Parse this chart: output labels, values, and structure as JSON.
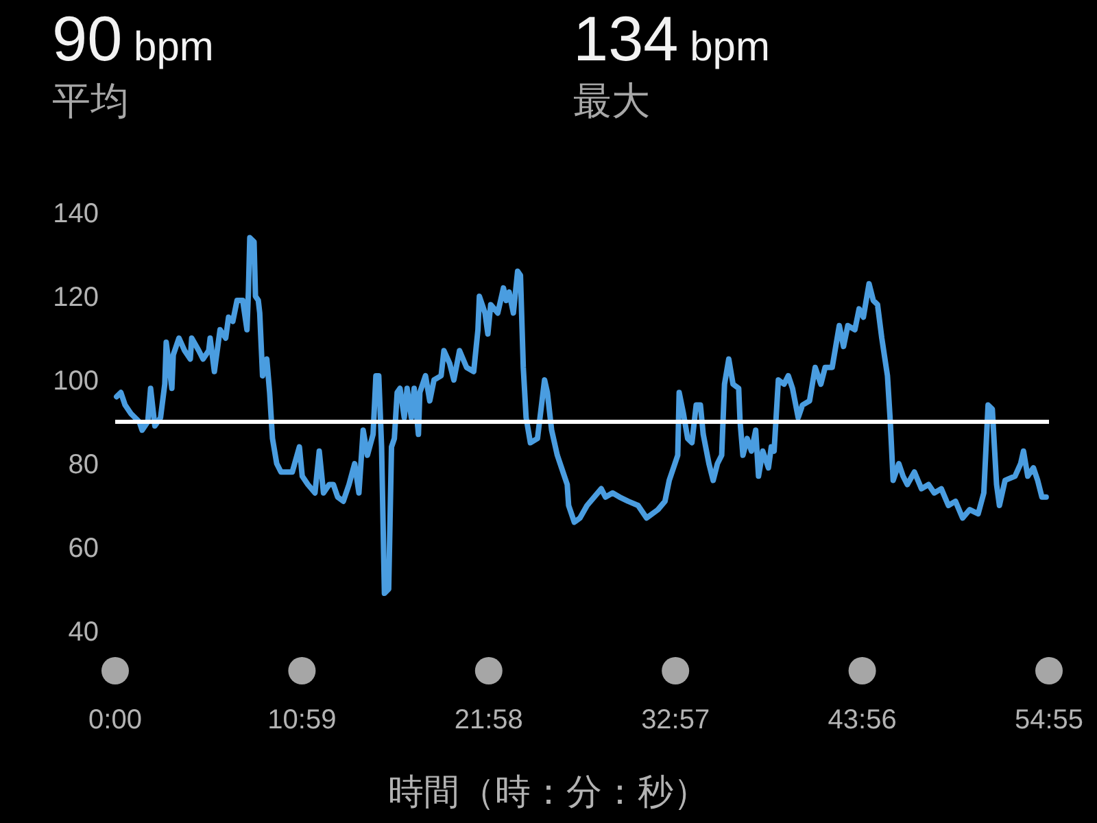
{
  "chart_data": {
    "type": "line",
    "annotations": [
      "90 bpm",
      "平均",
      "134 bpm",
      "最大"
    ],
    "xlabel": "時間（時：分：秒）",
    "x": [
      5,
      20,
      35,
      55,
      85,
      95,
      115,
      125,
      140,
      160,
      175,
      180,
      200,
      205,
      225,
      245,
      265,
      270,
      295,
      310,
      330,
      335,
      350,
      370,
      390,
      400,
      415,
      430,
      450,
      465,
      470,
      475,
      490,
      495,
      505,
      510,
      520,
      535,
      545,
      555,
      570,
      585,
      625,
      650,
      660,
      680,
      705,
      720,
      735,
      755,
      770,
      785,
      805,
      825,
      845,
      860,
      875,
      890,
      910,
      920,
      930,
      940,
      950,
      965,
      975,
      985,
      995,
      1005,
      1020,
      1030,
      1045,
      1055,
      1070,
      1075,
      1095,
      1110,
      1125,
      1150,
      1160,
      1180,
      1195,
      1215,
      1240,
      1265,
      1280,
      1285,
      1305,
      1315,
      1325,
      1350,
      1370,
      1380,
      1390,
      1405,
      1420,
      1430,
      1440,
      1450,
      1465,
      1490,
      1515,
      1525,
      1540,
      1560,
      1575,
      1595,
      1600,
      1620,
      1640,
      1665,
      1690,
      1715,
      1730,
      1755,
      1780,
      1810,
      1845,
      1875,
      1915,
      1940,
      1955,
      1975,
      1985,
      1990,
      2005,
      2020,
      2035,
      2050,
      2065,
      2075,
      2095,
      2110,
      2125,
      2140,
      2150,
      2165,
      2180,
      2200,
      2205,
      2215,
      2230,
      2245,
      2260,
      2270,
      2285,
      2305,
      2315,
      2325,
      2340,
      2360,
      2375,
      2390,
      2410,
      2425,
      2450,
      2470,
      2490,
      2505,
      2530,
      2555,
      2570,
      2585,
      2610,
      2625,
      2640,
      2660,
      2675,
      2690,
      2705,
      2725,
      2735,
      2745,
      2765,
      2780,
      2795,
      2820,
      2845,
      2870,
      2890,
      2915,
      2940,
      2965,
      2990,
      3015,
      3045,
      3065,
      3080,
      3095,
      3110,
      3120,
      3140,
      3175,
      3195,
      3205,
      3220,
      3240,
      3255,
      3270,
      3285
    ],
    "series": [
      {
        "color": "#4a9de0",
        "values": [
          96,
          97,
          94,
          92,
          90,
          88,
          90,
          98,
          89,
          91,
          99,
          109,
          98,
          106,
          110,
          107,
          105,
          110,
          107,
          105,
          107,
          110,
          102,
          112,
          110,
          115,
          114,
          119,
          119,
          112,
          121,
          134,
          133,
          120,
          119,
          116,
          101,
          105,
          97,
          86,
          80,
          78,
          78,
          84,
          77,
          75,
          73,
          83,
          73,
          75,
          75,
          72,
          71,
          75,
          80,
          73,
          88,
          82,
          87,
          101,
          101,
          84,
          49,
          50,
          84,
          86,
          97,
          98,
          91,
          98,
          91,
          98,
          87,
          97,
          101,
          95,
          100,
          101,
          107,
          104,
          100,
          107,
          103,
          102,
          112,
          120,
          116,
          111,
          118,
          116,
          122,
          119,
          121,
          116,
          126,
          125,
          103,
          91,
          85,
          86,
          100,
          97,
          88,
          82,
          79,
          75,
          70,
          66,
          67,
          70,
          72,
          74,
          72,
          73,
          72,
          71,
          70,
          67,
          69,
          71,
          76,
          80,
          82,
          97,
          92,
          86,
          85,
          94,
          94,
          87,
          80,
          76,
          80,
          82,
          99,
          105,
          99,
          98,
          90,
          82,
          86,
          83,
          88,
          77,
          83,
          79,
          84,
          83,
          100,
          99,
          101,
          98,
          91,
          94,
          95,
          103,
          99,
          103,
          103,
          113,
          108,
          113,
          112,
          117,
          115,
          123,
          119,
          118,
          110,
          101,
          90,
          76,
          80,
          77,
          75,
          78,
          74,
          75,
          73,
          74,
          70,
          71,
          67,
          69,
          68,
          73,
          94,
          93,
          75,
          70,
          76,
          77,
          80,
          83,
          77,
          79,
          76,
          72,
          72
        ]
      }
    ],
    "xlim": [
      0,
      3295
    ],
    "xticks": [
      {
        "value": 0,
        "label": "0:00"
      },
      {
        "value": 659,
        "label": "10:59"
      },
      {
        "value": 1318,
        "label": "21:58"
      },
      {
        "value": 1977,
        "label": "32:57"
      },
      {
        "value": 2636,
        "label": "43:56"
      },
      {
        "value": 3295,
        "label": "54:55"
      }
    ],
    "ylim": [
      40,
      140
    ],
    "yticks": [
      40,
      60,
      80,
      100,
      120,
      140
    ],
    "ref_lines": [
      {
        "axis": "y",
        "value": 90,
        "color": "#ffffff"
      }
    ]
  }
}
